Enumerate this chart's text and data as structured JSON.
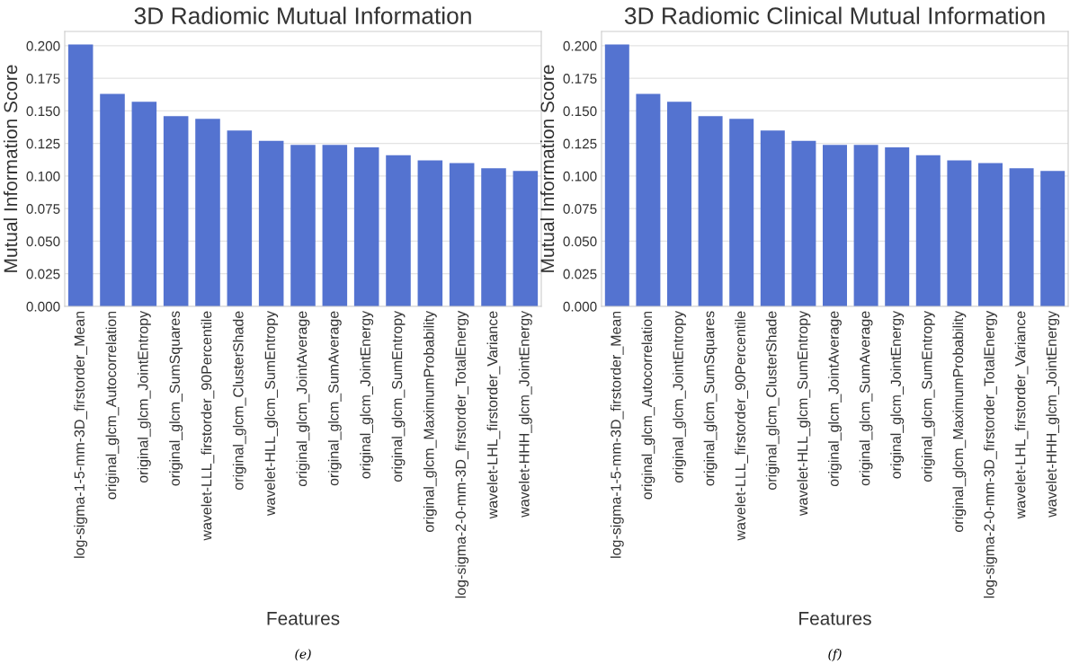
{
  "chart_data": [
    {
      "type": "bar",
      "title": "3D Radiomic Mutual Information",
      "xlabel": "Features",
      "ylabel": "Mutual Information Score",
      "categories": [
        "log-sigma-1-5-mm-3D_firstorder_Mean",
        "original_glcm_Autocorrelation",
        "original_glcm_JointEntropy",
        "original_glcm_SumSquares",
        "wavelet-LLL_firstorder_90Percentile",
        "original_glcm_ClusterShade",
        "wavelet-HLL_glcm_SumEntropy",
        "original_glcm_JointAverage",
        "original_glcm_SumAverage",
        "original_glcm_JointEnergy",
        "original_glcm_SumEntropy",
        "original_glcm_MaximumProbability",
        "log-sigma-2-0-mm-3D_firstorder_TotalEnergy",
        "wavelet-LHL_firstorder_Variance",
        "wavelet-HHH_glcm_JointEnergy"
      ],
      "values": [
        0.201,
        0.163,
        0.157,
        0.146,
        0.144,
        0.135,
        0.127,
        0.124,
        0.124,
        0.122,
        0.116,
        0.112,
        0.11,
        0.106,
        0.104
      ],
      "color": "#5473d0",
      "ylim": [
        0,
        0.211
      ],
      "yticks": [
        {
          "value": 0,
          "label": "0.000"
        },
        {
          "value": 0.025,
          "label": "0.025"
        },
        {
          "value": 0.05,
          "label": "0.050"
        },
        {
          "value": 0.075,
          "label": "0.075"
        },
        {
          "value": 0.1,
          "label": "0.100"
        },
        {
          "value": 0.125,
          "label": "0.125"
        },
        {
          "value": 0.15,
          "label": "0.150"
        },
        {
          "value": 0.175,
          "label": "0.175"
        },
        {
          "value": 0.2,
          "label": "0.200"
        }
      ],
      "grid": "y",
      "annotations": [
        "(e)"
      ]
    },
    {
      "type": "bar",
      "title": "3D Radiomic Clinical Mutual Information",
      "xlabel": "Features",
      "ylabel": "Mutual Information Score",
      "categories": [
        "log-sigma-1-5-mm-3D_firstorder_Mean",
        "original_glcm_Autocorrelation",
        "original_glcm_JointEntropy",
        "original_glcm_SumSquares",
        "wavelet-LLL_firstorder_90Percentile",
        "original_glcm_ClusterShade",
        "wavelet-HLL_glcm_SumEntropy",
        "original_glcm_JointAverage",
        "original_glcm_SumAverage",
        "original_glcm_JointEnergy",
        "original_glcm_SumEntropy",
        "original_glcm_MaximumProbability",
        "log-sigma-2-0-mm-3D_firstorder_TotalEnergy",
        "wavelet-LHL_firstorder_Variance",
        "wavelet-HHH_glcm_JointEnergy"
      ],
      "values": [
        0.201,
        0.163,
        0.157,
        0.146,
        0.144,
        0.135,
        0.127,
        0.124,
        0.124,
        0.122,
        0.116,
        0.112,
        0.11,
        0.106,
        0.104
      ],
      "color": "#5473d0",
      "ylim": [
        0,
        0.211
      ],
      "yticks": [
        {
          "value": 0,
          "label": "0.000"
        },
        {
          "value": 0.025,
          "label": "0.025"
        },
        {
          "value": 0.05,
          "label": "0.050"
        },
        {
          "value": 0.075,
          "label": "0.075"
        },
        {
          "value": 0.1,
          "label": "0.100"
        },
        {
          "value": 0.125,
          "label": "0.125"
        },
        {
          "value": 0.15,
          "label": "0.150"
        },
        {
          "value": 0.175,
          "label": "0.175"
        },
        {
          "value": 0.2,
          "label": "0.200"
        }
      ],
      "grid": "y",
      "annotations": [
        "(f)"
      ]
    }
  ]
}
